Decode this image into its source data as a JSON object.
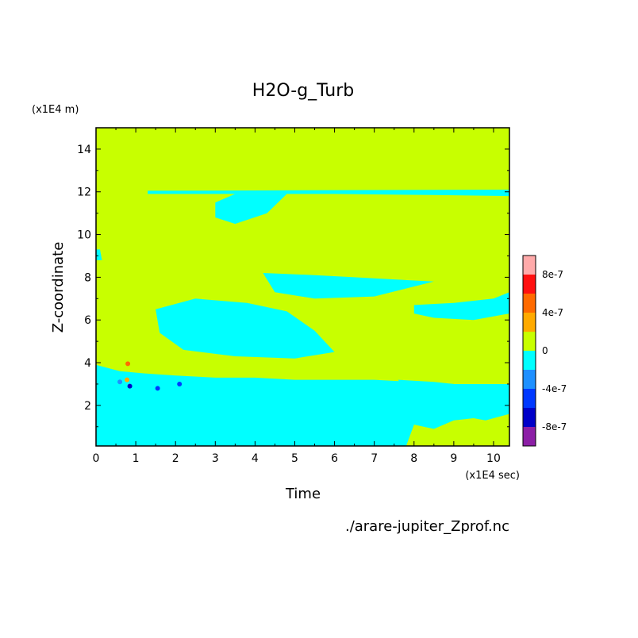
{
  "chart_data": {
    "type": "heatmap",
    "title": "H2O-g_Turb",
    "xlabel": "Time",
    "ylabel": "Z-coordinate",
    "x_unit": "(x1E4 sec)",
    "y_unit": "(x1E4 m)",
    "source_file": "./arare-jupiter_Zprof.nc",
    "xlim": [
      0,
      10.4
    ],
    "ylim": [
      0.1,
      15
    ],
    "xticks": [
      0,
      1,
      2,
      3,
      4,
      5,
      6,
      7,
      8,
      9,
      10
    ],
    "yticks": [
      2,
      4,
      6,
      8,
      10,
      12,
      14
    ],
    "grid": false,
    "colorbar": {
      "levels": [
        -1e-06,
        -8e-07,
        -6e-07,
        -4e-07,
        -2e-07,
        0,
        2e-07,
        4e-07,
        6e-07,
        8e-07,
        1e-06
      ],
      "colors": [
        "#8c1fa6",
        "#0000c8",
        "#0038ff",
        "#1e90ff",
        "#00ffff",
        "#c8ff00",
        "#ffaa00",
        "#ff6a00",
        "#ff1010",
        "#ffaaaa"
      ],
      "tick_labels": [
        {
          "value": -8e-07,
          "label": "-8e-7"
        },
        {
          "value": -4e-07,
          "label": "-4e-7"
        },
        {
          "value": 0,
          "label": "0"
        },
        {
          "value": 4e-07,
          "label": "4e-7"
        },
        {
          "value": 8e-07,
          "label": "8e-7"
        }
      ]
    },
    "background_level_color": "#c8ff00",
    "negative_regions": [
      {
        "points": [
          [
            0,
            3.9
          ],
          [
            0.6,
            3.6
          ],
          [
            1.2,
            3.5
          ],
          [
            2.0,
            3.4
          ],
          [
            3.0,
            3.3
          ],
          [
            4.0,
            3.3
          ],
          [
            5.0,
            3.2
          ],
          [
            6.0,
            3.2
          ],
          [
            7.0,
            3.2
          ],
          [
            8.0,
            3.1
          ],
          [
            9.0,
            3.0
          ],
          [
            10.4,
            3.0
          ],
          [
            10.4,
            1.6
          ],
          [
            9.8,
            1.3
          ],
          [
            9.5,
            1.4
          ],
          [
            9.0,
            1.3
          ],
          [
            8.5,
            0.9
          ],
          [
            8.0,
            1.1
          ],
          [
            7.8,
            0.1
          ],
          [
            0,
            0.1
          ]
        ]
      },
      {
        "points": [
          [
            1.3,
            12.05
          ],
          [
            10.4,
            12.1
          ],
          [
            10.4,
            11.8
          ],
          [
            8.5,
            11.85
          ],
          [
            6.0,
            11.9
          ],
          [
            3.5,
            11.9
          ],
          [
            1.3,
            11.9
          ]
        ]
      },
      {
        "points": [
          [
            3.0,
            11.5
          ],
          [
            3.5,
            11.9
          ],
          [
            4.8,
            11.9
          ],
          [
            4.3,
            11.0
          ],
          [
            3.5,
            10.5
          ],
          [
            3.0,
            10.8
          ]
        ]
      },
      {
        "points": [
          [
            4.2,
            8.2
          ],
          [
            5.5,
            8.1
          ],
          [
            6.5,
            8.0
          ],
          [
            7.5,
            7.9
          ],
          [
            8.5,
            7.8
          ],
          [
            7.0,
            7.1
          ],
          [
            5.5,
            7.0
          ],
          [
            4.5,
            7.3
          ]
        ]
      },
      {
        "points": [
          [
            8.0,
            6.7
          ],
          [
            9.0,
            6.8
          ],
          [
            10.0,
            7.0
          ],
          [
            10.4,
            7.3
          ],
          [
            10.4,
            6.3
          ],
          [
            9.5,
            6.0
          ],
          [
            8.5,
            6.1
          ],
          [
            8.0,
            6.3
          ]
        ]
      },
      {
        "points": [
          [
            1.5,
            6.5
          ],
          [
            2.5,
            7.0
          ],
          [
            3.8,
            6.8
          ],
          [
            4.8,
            6.4
          ],
          [
            5.5,
            5.5
          ],
          [
            6.0,
            4.5
          ],
          [
            5.0,
            4.2
          ],
          [
            3.5,
            4.3
          ],
          [
            2.2,
            4.6
          ],
          [
            1.6,
            5.4
          ]
        ]
      },
      {
        "points": [
          [
            7.6,
            3.2
          ],
          [
            8.5,
            3.1
          ],
          [
            9.5,
            2.9
          ],
          [
            10.4,
            2.8
          ],
          [
            10.4,
            2.2
          ],
          [
            9.5,
            2.0
          ],
          [
            8.6,
            2.3
          ],
          [
            7.8,
            2.6
          ]
        ]
      },
      {
        "points": [
          [
            0,
            9.3
          ],
          [
            0.1,
            9.3
          ],
          [
            0.15,
            8.8
          ],
          [
            0,
            8.8
          ]
        ]
      }
    ],
    "positive_spots": [
      {
        "x": 0.8,
        "y": 3.95,
        "level": 4e-07
      },
      {
        "x": 0.78,
        "y": 3.2,
        "level": 3e-07
      }
    ],
    "strong_negative_spots": [
      {
        "x": 0.85,
        "y": 2.9,
        "level": -7e-07
      },
      {
        "x": 1.55,
        "y": 2.8,
        "level": -5e-07
      },
      {
        "x": 2.1,
        "y": 3.0,
        "level": -5e-07
      },
      {
        "x": 0.6,
        "y": 3.1,
        "level": -3e-07
      }
    ]
  }
}
